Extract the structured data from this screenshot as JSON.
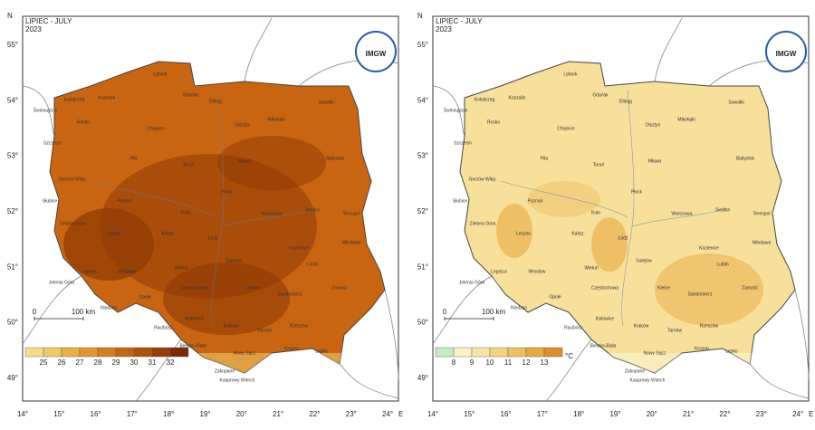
{
  "header": "LIPIEC - JULY",
  "year": "2023",
  "logo": "IMGW",
  "north": "N",
  "east": "E",
  "lat_labels": [
    "55°",
    "54°",
    "53°",
    "52°",
    "51°",
    "50°",
    "49°"
  ],
  "lon_labels": [
    "14°",
    "15°",
    "16°",
    "17°",
    "18°",
    "19°",
    "20°",
    "21°",
    "22°",
    "23°",
    "24°"
  ],
  "scale": [
    "0",
    "100 km"
  ],
  "cities": [
    "Lębork",
    "Gdańsk",
    "Elbląg",
    "Koszalin",
    "Kołobrzeg",
    "Świnoujście",
    "Szczecin",
    "Resko",
    "Chojnice",
    "Olsztyn",
    "Mikołajki",
    "Suwałki",
    "Piła",
    "Toruń",
    "Mława",
    "Białystok",
    "Gorzów Wlkp.",
    "Słubice",
    "Poznań",
    "Płock",
    "Warszawa",
    "Siedlce",
    "Terespol",
    "Zielona Góra",
    "Leszno",
    "Kalisz",
    "Koło",
    "Łódź",
    "Sulejów",
    "Kozienice",
    "Włodawa",
    "Legnica",
    "Wrocław",
    "Lublin",
    "Jelenia Góra",
    "Opole",
    "Częstochowa",
    "Kielce",
    "Sandomierz",
    "Zamość",
    "Kłodzko",
    "Racibórz",
    "Katowice",
    "Kraków",
    "Tarnów",
    "Rzeszów",
    "Bielsko-Biała",
    "Nowy Sącz",
    "Krosno",
    "Zakopane",
    "Kasprowy Wierch",
    "Lesko",
    "Wieluń"
  ],
  "panels": [
    {
      "legend": {
        "labels": [
          "25",
          "26",
          "27",
          "28",
          "29",
          "30",
          "31",
          "32"
        ],
        "colors": [
          "#f6dc8a",
          "#f2c766",
          "#ecae45",
          "#e39630",
          "#d87d1c",
          "#c96510",
          "#b4500a",
          "#9a3d06",
          "#7c2a02"
        ]
      }
    },
    {
      "legend": {
        "labels": [
          "8",
          "9",
          "10",
          "11",
          "12",
          "13"
        ],
        "unit": "°C",
        "colors": [
          "#c4ecc4",
          "#fbf3c4",
          "#f8e6a0",
          "#f4d37c",
          "#efbf5c",
          "#e9a741",
          "#df8e2c"
        ]
      }
    }
  ]
}
